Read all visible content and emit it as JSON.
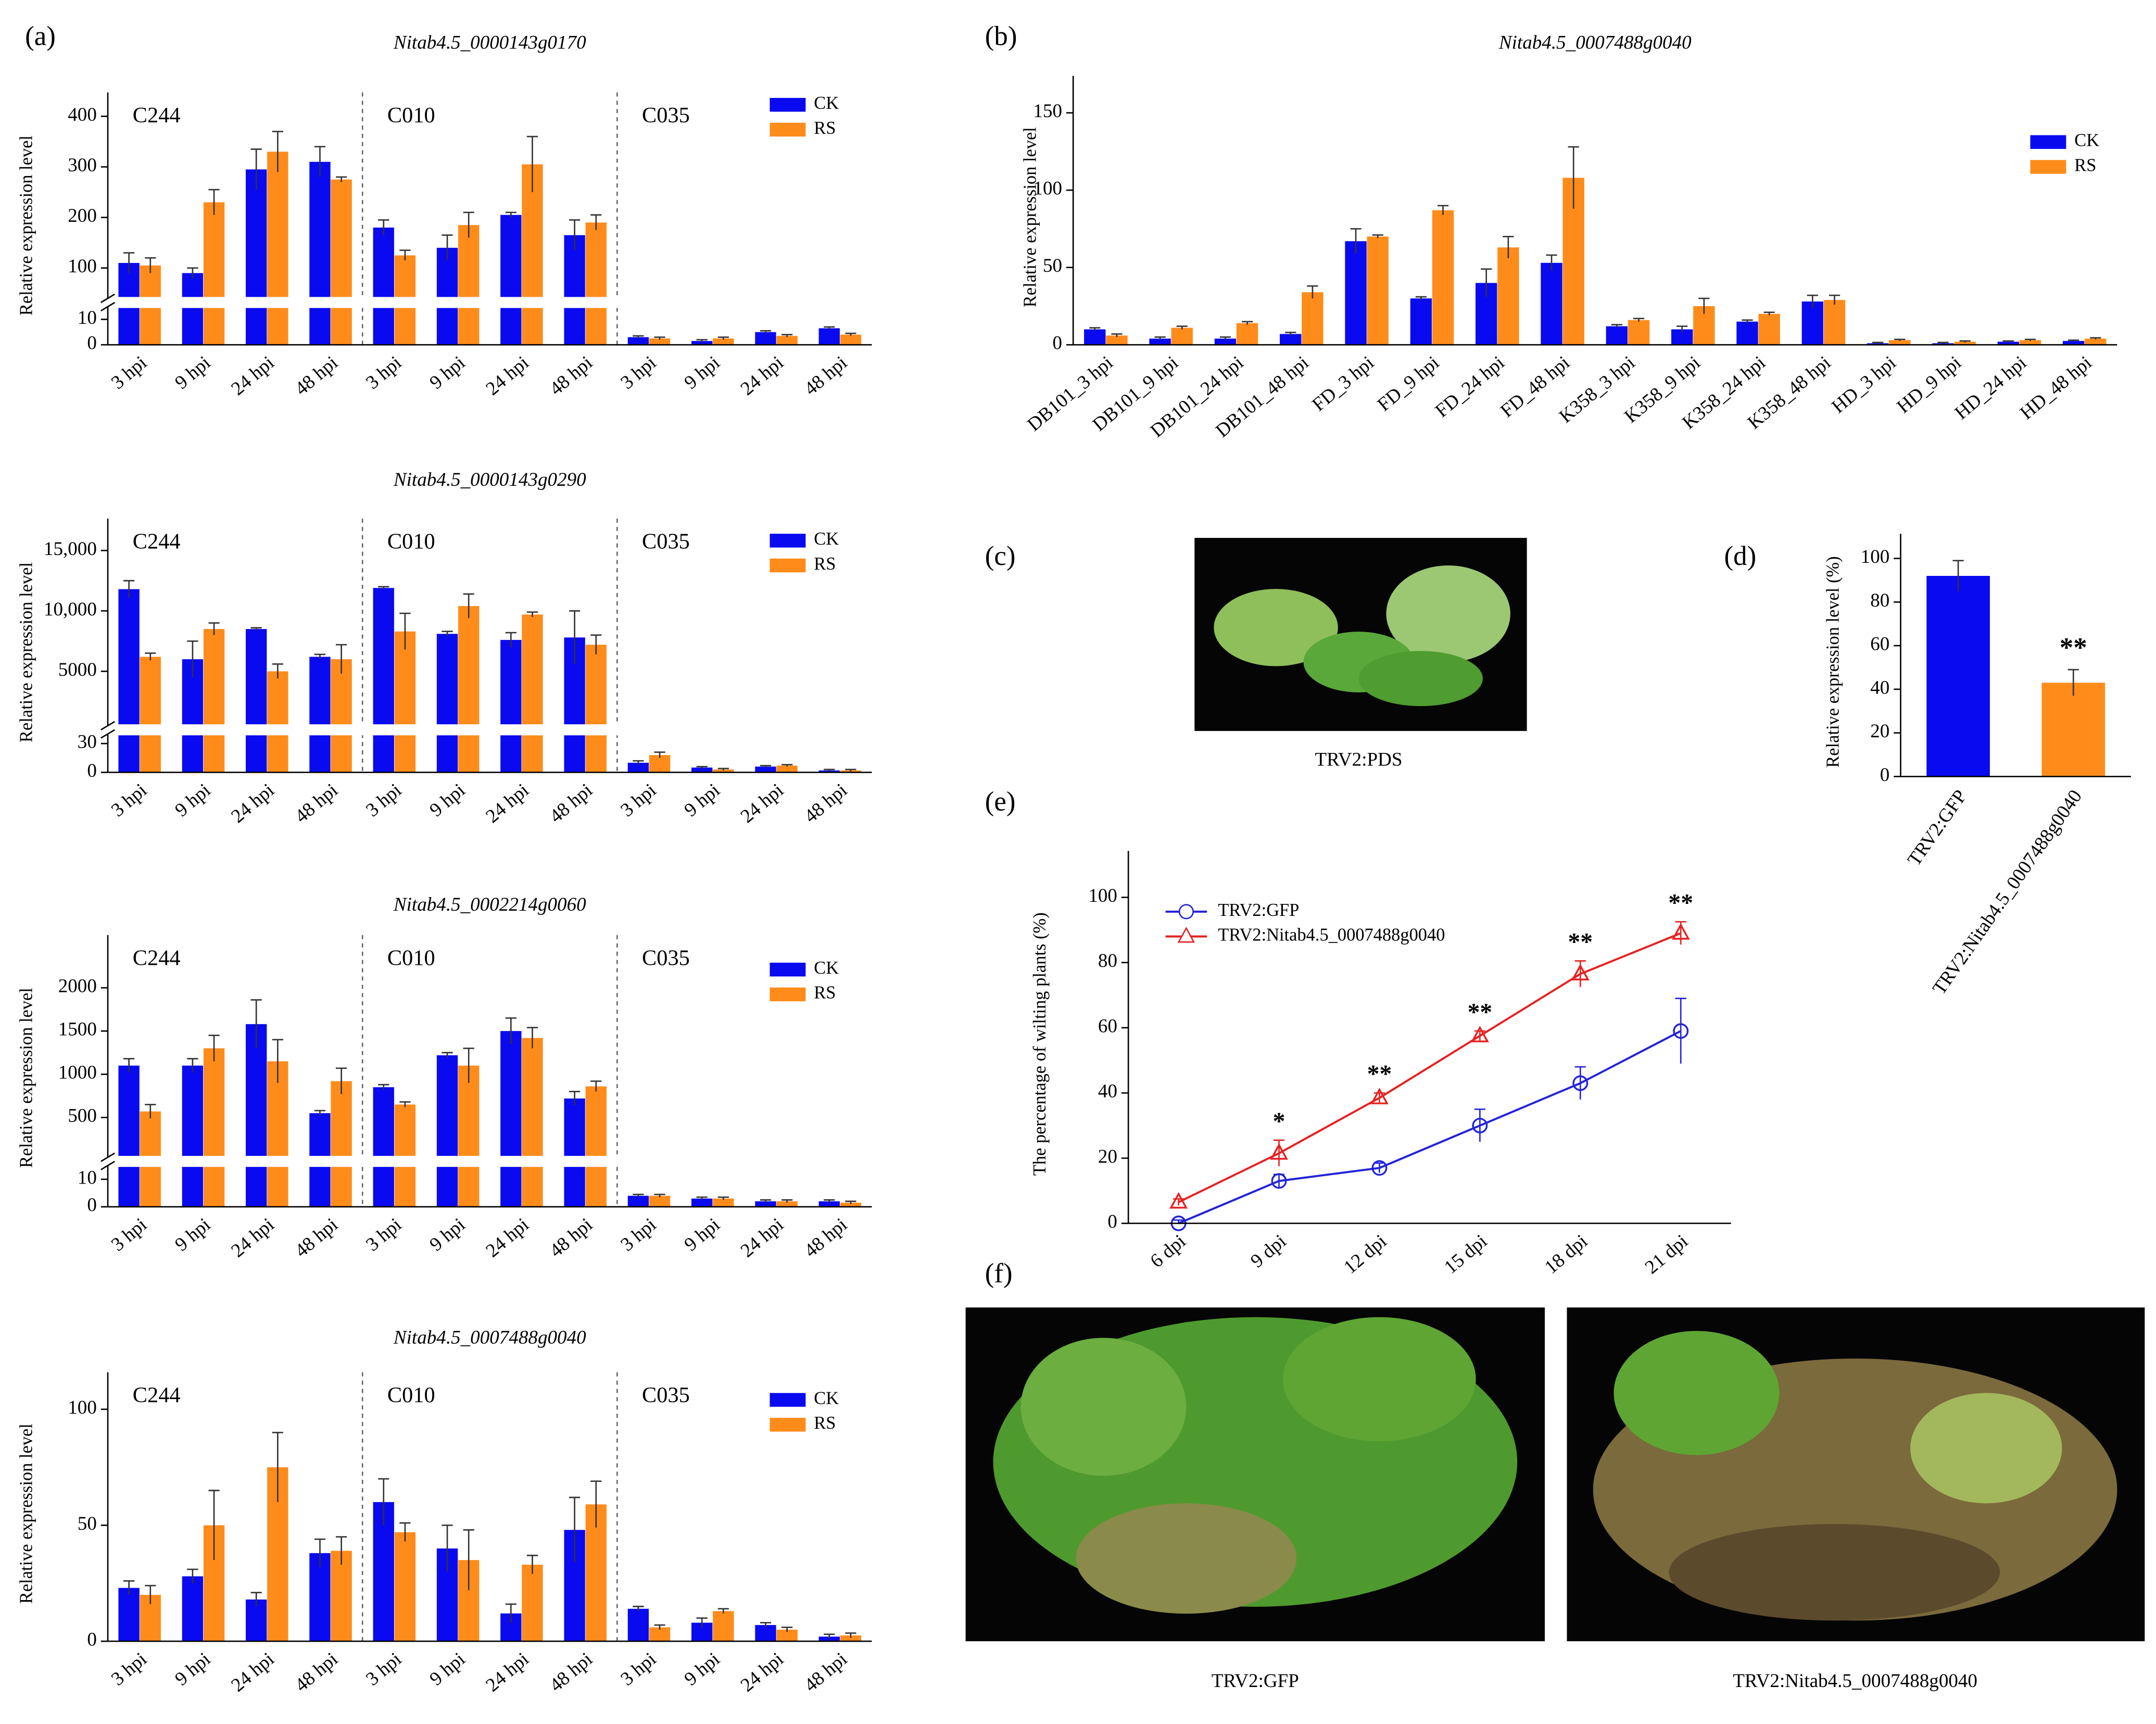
{
  "figure": {
    "panels": [
      "(a)",
      "(b)",
      "(c)",
      "(d)",
      "(e)",
      "(f)"
    ],
    "captions": [
      "TRV2:PDS",
      "TRV2:GFP",
      "TRV2:Nitab4.5_0007488g0040"
    ]
  },
  "chart_data": [
    {
      "type": "bar",
      "title": "Nitab4.5_0000143g0170",
      "y_label": "Relative expression level",
      "groups": [
        "C244",
        "C010",
        "C035"
      ],
      "categories": [
        "3 hpi",
        "9 hpi",
        "24 hpi",
        "48 hpi",
        "3 hpi",
        "9 hpi",
        "24 hpi",
        "48 hpi",
        "3 hpi",
        "9 hpi",
        "24 hpi",
        "48 hpi"
      ],
      "series": [
        {
          "name": "CK",
          "color": "#0a0af0",
          "values": [
            110,
            90,
            295,
            310,
            180,
            140,
            205,
            165,
            3,
            1.5,
            5,
            6.5
          ],
          "errors": [
            20,
            10,
            40,
            30,
            15,
            25,
            5,
            30,
            0.5,
            0.5,
            0.5,
            0.5
          ]
        },
        {
          "name": "RS",
          "color": "#ff8c1a",
          "values": [
            105,
            230,
            330,
            275,
            125,
            185,
            305,
            190,
            2.5,
            2.5,
            3.5,
            4
          ],
          "errors": [
            15,
            25,
            40,
            5,
            10,
            25,
            55,
            15,
            0.5,
            0.5,
            0.5,
            0.5
          ]
        }
      ],
      "ylim": [
        0,
        420
      ],
      "ybreak": [
        15,
        40
      ],
      "yticks": [
        0,
        10,
        100,
        200,
        300,
        400
      ],
      "legend": "top-right"
    },
    {
      "type": "bar",
      "title": "Nitab4.5_0000143g0290",
      "y_label": "Relative expression level",
      "groups": [
        "C244",
        "C010",
        "C035"
      ],
      "categories": [
        "3 hpi",
        "9 hpi",
        "24 hpi",
        "48 hpi",
        "3 hpi",
        "9 hpi",
        "24 hpi",
        "48 hpi",
        "3 hpi",
        "9 hpi",
        "24 hpi",
        "48 hpi"
      ],
      "series": [
        {
          "name": "CK",
          "color": "#0a0af0",
          "values": [
            11800,
            6000,
            8500,
            6200,
            11900,
            8100,
            7600,
            7800,
            10,
            5,
            6,
            2
          ],
          "errors": [
            700,
            1500,
            100,
            200,
            100,
            200,
            600,
            2200,
            2,
            1,
            1,
            1
          ]
        },
        {
          "name": "RS",
          "color": "#ff8c1a",
          "values": [
            6200,
            8500,
            5000,
            6000,
            8300,
            10400,
            9700,
            7200,
            18,
            3,
            7,
            2
          ],
          "errors": [
            300,
            500,
            600,
            1200,
            1500,
            1000,
            200,
            800,
            3,
            1,
            1,
            1
          ]
        }
      ],
      "ylim": [
        0,
        16500
      ],
      "ybreak": [
        40,
        500
      ],
      "yticks": [
        0,
        30,
        5000,
        {
          "value": 10000,
          "label": "10,000"
        },
        {
          "value": 15000,
          "label": "15,000"
        }
      ],
      "legend": "top-right"
    },
    {
      "type": "bar",
      "title": "Nitab4.5_0002214g0060",
      "y_label": "Relative expression level",
      "groups": [
        "C244",
        "C010",
        "C035"
      ],
      "categories": [
        "3 hpi",
        "9 hpi",
        "24 hpi",
        "48 hpi",
        "3 hpi",
        "9 hpi",
        "24 hpi",
        "48 hpi",
        "3 hpi",
        "9 hpi",
        "24 hpi",
        "48 hpi"
      ],
      "series": [
        {
          "name": "CK",
          "color": "#0a0af0",
          "values": [
            1100,
            1100,
            1580,
            550,
            850,
            1220,
            1500,
            720,
            4,
            3,
            2,
            2
          ],
          "errors": [
            80,
            80,
            280,
            30,
            30,
            30,
            150,
            80,
            0.5,
            0.5,
            0.5,
            0.5
          ]
        },
        {
          "name": "RS",
          "color": "#ff8c1a",
          "values": [
            570,
            1300,
            1150,
            920,
            650,
            1100,
            1420,
            860,
            4,
            3,
            2,
            1.5
          ],
          "errors": [
            80,
            150,
            250,
            150,
            30,
            200,
            120,
            60,
            0.5,
            0.5,
            0.5,
            0.5
          ]
        }
      ],
      "ylim": [
        0,
        2450
      ],
      "ybreak": [
        15,
        40
      ],
      "yticks": [
        0,
        10,
        500,
        1000,
        1500,
        2000
      ],
      "legend": "top-right"
    },
    {
      "type": "bar",
      "title": "Nitab4.5_0007488g0040",
      "y_label": "Relative expression level",
      "groups": [
        "C244",
        "C010",
        "C035"
      ],
      "categories": [
        "3 hpi",
        "9 hpi",
        "24 hpi",
        "48 hpi",
        "3 hpi",
        "9 hpi",
        "24 hpi",
        "48 hpi",
        "3 hpi",
        "9 hpi",
        "24 hpi",
        "48 hpi"
      ],
      "series": [
        {
          "name": "CK",
          "color": "#0a0af0",
          "values": [
            23,
            28,
            18,
            38,
            60,
            40,
            12,
            48,
            14,
            8,
            7,
            2
          ],
          "errors": [
            3,
            3,
            3,
            6,
            10,
            10,
            4,
            14,
            1,
            2,
            1,
            1
          ]
        },
        {
          "name": "RS",
          "color": "#ff8c1a",
          "values": [
            20,
            50,
            75,
            39,
            47,
            35,
            33,
            59,
            6,
            13,
            5,
            2.5
          ],
          "errors": [
            4,
            15,
            15,
            6,
            4,
            13,
            4,
            10,
            1,
            1,
            1,
            1
          ]
        }
      ],
      "ylim": [
        0,
        110
      ],
      "yticks": [
        0,
        50,
        100
      ],
      "legend": "top-right"
    },
    {
      "type": "bar",
      "title": "Nitab4.5_0007488g0040",
      "y_label": "Relative expression level",
      "categories": [
        "DB101_3 hpi",
        "DB101_9 hpi",
        "DB101_24 hpi",
        "DB101_48 hpi",
        "FD_3 hpi",
        "FD_9 hpi",
        "FD_24 hpi",
        "FD_48 hpi",
        "K358_3 hpi",
        "K358_9 hpi",
        "K358_24 hpi",
        "K358_48 hpi",
        "HD_3 hpi",
        "HD_9 hpi",
        "HD_24 hpi",
        "HD_48 hpi"
      ],
      "series": [
        {
          "name": "CK",
          "color": "#0a0af0",
          "values": [
            10,
            4,
            4,
            7,
            67,
            30,
            40,
            53,
            12,
            10,
            15,
            28,
            1,
            1,
            2,
            2.5
          ],
          "errors": [
            1,
            1,
            1,
            1,
            8,
            1,
            9,
            5,
            1,
            2,
            1,
            4,
            0.5,
            0.5,
            0.5,
            0.5
          ]
        },
        {
          "name": "RS",
          "color": "#ff8c1a",
          "values": [
            6,
            11,
            14,
            34,
            70,
            87,
            63,
            108,
            16,
            25,
            20,
            29,
            3,
            2,
            3,
            4
          ],
          "errors": [
            1,
            1,
            1,
            4,
            1,
            3,
            7,
            20,
            1,
            5,
            1,
            3,
            0.5,
            0.5,
            0.5,
            0.5
          ]
        }
      ],
      "ylim": [
        0,
        165
      ],
      "yticks": [
        0,
        50,
        100,
        150
      ],
      "legend": "top-right"
    },
    {
      "type": "bar",
      "y_label": "Relative expression level (%)",
      "categories": [
        "TRV2:GFP",
        "TRV2:Nitab4.5_0007488g0040"
      ],
      "values": [
        92,
        43
      ],
      "errors": [
        7,
        6
      ],
      "colors": [
        "#0a0af0",
        "#ff8c1a"
      ],
      "significance": [
        null,
        "**"
      ],
      "ylim": [
        0,
        105
      ],
      "yticks": [
        0,
        20,
        40,
        60,
        80,
        100
      ]
    },
    {
      "type": "line",
      "y_label": "The percentage of wilting plants (%)",
      "categories": [
        "6 dpi",
        "9 dpi",
        "12 dpi",
        "15 dpi",
        "18 dpi",
        "21 dpi"
      ],
      "series": [
        {
          "name": "TRV2:GFP",
          "color": "#2323d8",
          "marker": "circle",
          "values": [
            0,
            13,
            17,
            30,
            43,
            59
          ],
          "errors": [
            1,
            2,
            1.5,
            5,
            5,
            10
          ]
        },
        {
          "name": "TRV2:Nitab4.5_0007488g0040",
          "color": "#e52222",
          "marker": "triangle",
          "values": [
            6.5,
            21.5,
            38.5,
            57.5,
            76.5,
            89
          ],
          "errors": [
            1,
            4,
            1.5,
            1.5,
            4,
            3.5
          ],
          "significance": [
            null,
            "*",
            "**",
            "**",
            "**",
            "**"
          ]
        }
      ],
      "ylim": [
        0,
        110
      ],
      "yticks": [
        0,
        20,
        40,
        60,
        80,
        100
      ],
      "legend": "top-left"
    }
  ]
}
